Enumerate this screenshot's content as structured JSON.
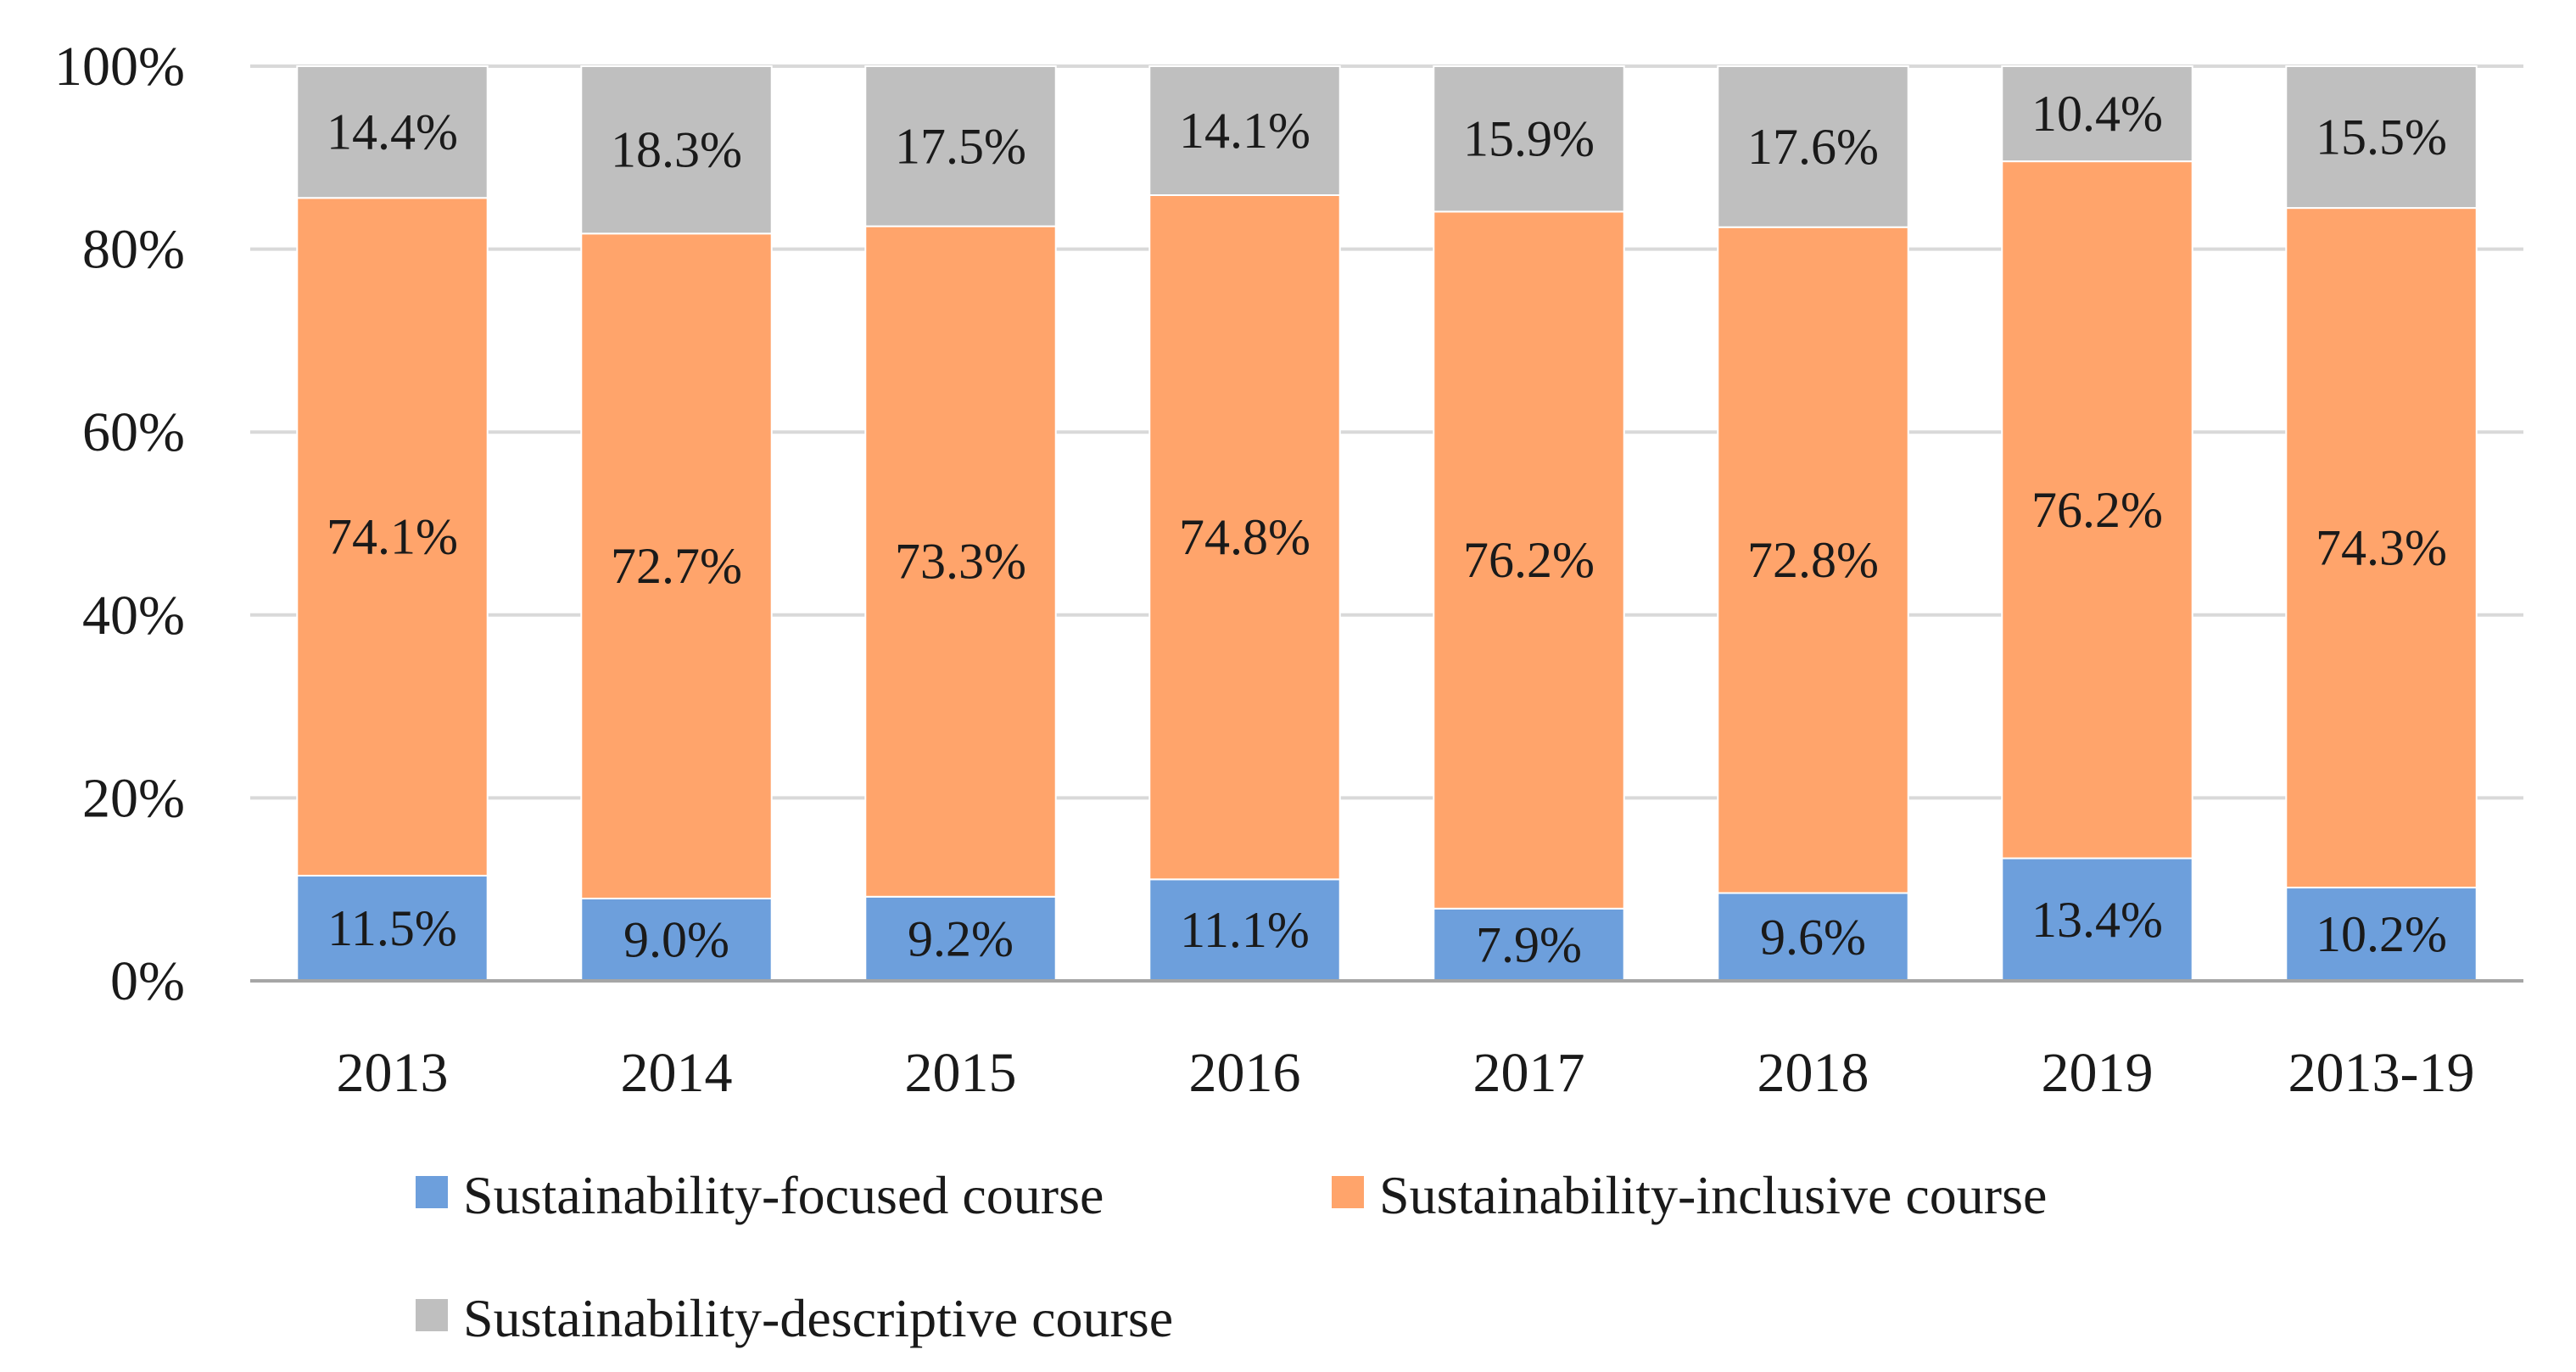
{
  "chart_data": {
    "type": "bar",
    "stacked": true,
    "categories": [
      "2013",
      "2014",
      "2015",
      "2016",
      "2017",
      "2018",
      "2019",
      "2013-19"
    ],
    "series": [
      {
        "name": "Sustainability-focused course",
        "color": "#6d9fdc",
        "values": [
          11.5,
          9.0,
          9.2,
          11.1,
          7.9,
          9.6,
          13.4,
          10.2
        ],
        "labels": [
          "11.5%",
          "9.0%",
          "9.2%",
          "11.1%",
          "7.9%",
          "9.6%",
          "13.4%",
          "10.2%"
        ]
      },
      {
        "name": "Sustainability-inclusive course",
        "color": "#ffa46b",
        "values": [
          74.1,
          72.7,
          73.3,
          74.8,
          76.2,
          72.8,
          76.2,
          74.3
        ],
        "labels": [
          "74.1%",
          "72.7%",
          "73.3%",
          "74.8%",
          "76.2%",
          "72.8%",
          "76.2%",
          "74.3%"
        ]
      },
      {
        "name": "Sustainability-descriptive course",
        "color": "#bfbfbf",
        "values": [
          14.4,
          18.3,
          17.5,
          14.1,
          15.9,
          17.6,
          10.4,
          15.5
        ],
        "labels": [
          "14.4%",
          "18.3%",
          "17.5%",
          "14.1%",
          "15.9%",
          "17.6%",
          "10.4%",
          "15.5%"
        ]
      }
    ],
    "title": "",
    "xlabel": "",
    "ylabel": "",
    "ylim": [
      0,
      100
    ],
    "yticks": [
      0,
      20,
      40,
      60,
      80,
      100
    ],
    "ytick_labels": [
      "0%",
      "20%",
      "40%",
      "60%",
      "80%",
      "100%"
    ],
    "grid": true,
    "grid_color": "#d9d9d9",
    "axis_color": "#a6a6a6",
    "legend_position": "bottom"
  }
}
